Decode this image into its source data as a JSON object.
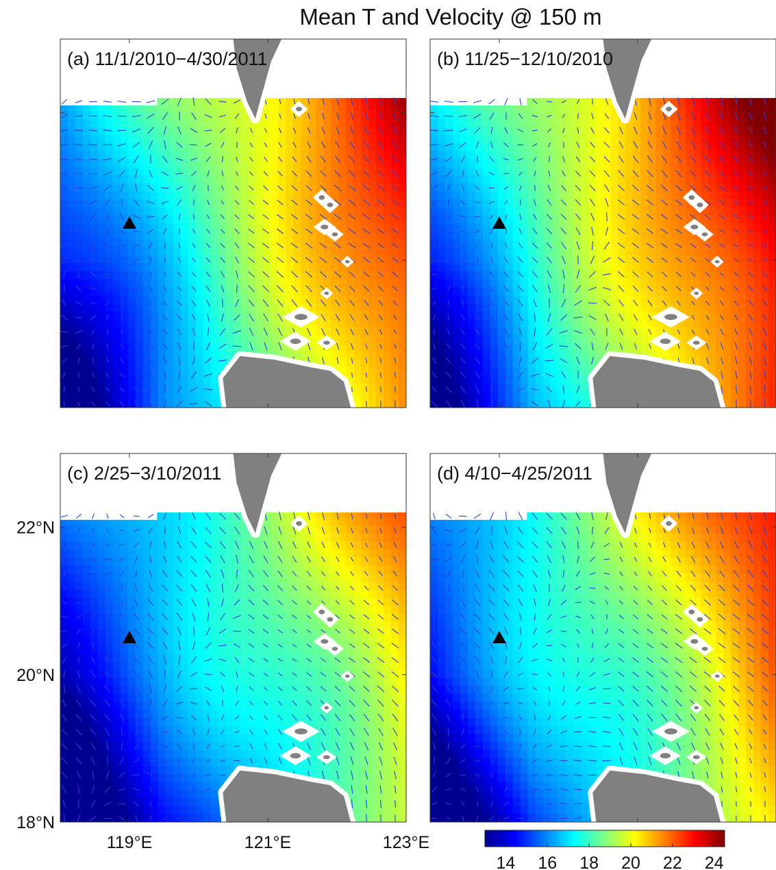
{
  "figure": {
    "title": "Mean T and Velocity @ 150 m"
  },
  "chart_data": {
    "type": "heatmap",
    "title": "Mean T and Velocity @ 150 m",
    "panels": [
      {
        "label": "(a) 11/1/2010−4/30/2011",
        "warmth": 0.0,
        "station": {
          "lon": 119,
          "lat": 20.5
        }
      },
      {
        "label": "(b) 11/25−12/10/2010",
        "warmth": 0.8,
        "station": {
          "lon": 119,
          "lat": 20.5
        }
      },
      {
        "label": "(c) 2/25−3/10/2011",
        "warmth": -1.4,
        "station": {
          "lon": 119,
          "lat": 20.5
        }
      },
      {
        "label": "(d) 4/10−4/25/2011",
        "warmth": -0.6,
        "station": {
          "lon": 119,
          "lat": 20.5
        }
      }
    ],
    "lon_range": [
      118,
      123
    ],
    "lat_range": [
      18,
      23
    ],
    "x_ticks": [
      "119°E",
      "121°E",
      "123°E"
    ],
    "x_tick_values": [
      119,
      121,
      123
    ],
    "y_ticks": [
      "22°N",
      "20°N",
      "18°N"
    ],
    "y_tick_values": [
      22,
      20,
      18
    ],
    "colorbar": {
      "ticks": [
        "14",
        "16",
        "18",
        "20",
        "22",
        "24"
      ],
      "tick_values": [
        14,
        16,
        18,
        20,
        22,
        24
      ],
      "range": [
        13,
        24.5
      ]
    },
    "colors": {
      "land": "#808080",
      "vector": "#2a3fd8",
      "station_marker": "#000000",
      "colormap": [
        "#00008f",
        "#0000ff",
        "#0080ff",
        "#00ffff",
        "#80ff80",
        "#ffff00",
        "#ff8000",
        "#ff0000",
        "#800000"
      ]
    }
  }
}
